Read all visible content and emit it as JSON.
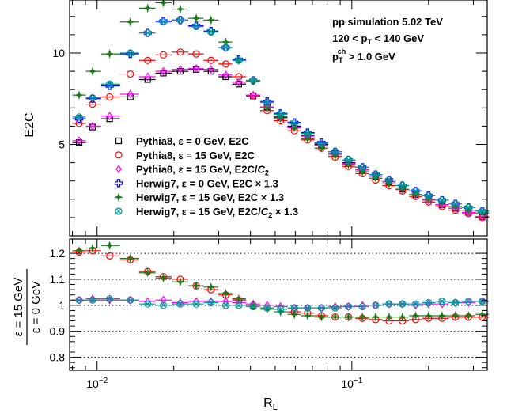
{
  "chart_data": [
    {
      "type": "scatter",
      "panel": "top",
      "ylabel": "E2C",
      "xscale": "log",
      "xlim": [
        0.0078,
        0.34
      ],
      "ylim": [
        0,
        12.9
      ],
      "x_ticks": [
        0.01,
        0.1
      ],
      "y_ticks": [
        5,
        10
      ],
      "annotations": [
        "pp simulation 5.02 TeV",
        "120 < p_T < 140 GeV",
        "p_T^ch > 1.0 GeV"
      ],
      "legend_position": "bottom-center",
      "x": [
        0.0085,
        0.0096,
        0.0112,
        0.0135,
        0.0158,
        0.0182,
        0.0212,
        0.0245,
        0.028,
        0.032,
        0.036,
        0.041,
        0.0465,
        0.0525,
        0.0595,
        0.067,
        0.076,
        0.086,
        0.097,
        0.11,
        0.124,
        0.14,
        0.158,
        0.178,
        0.2,
        0.226,
        0.255,
        0.287,
        0.325
      ],
      "series": [
        {
          "name": "Pythia8, ε = 0 GeV, E2C",
          "marker": "open-square",
          "color": "#000000",
          "values": [
            5.1,
            5.95,
            6.4,
            7.6,
            8.55,
            8.9,
            9.0,
            9.1,
            9.0,
            8.7,
            8.3,
            7.65,
            7.05,
            6.5,
            6.0,
            5.5,
            5.0,
            4.5,
            4.0,
            3.6,
            3.25,
            2.95,
            2.55,
            2.25,
            1.95,
            1.7,
            1.5,
            1.28,
            1.05
          ]
        },
        {
          "name": "Pythia8, ε = 15 GeV, E2C",
          "marker": "open-circle",
          "color": "#ff0000",
          "values": [
            6.15,
            7.2,
            7.6,
            8.85,
            9.6,
            9.9,
            10.05,
            9.95,
            9.6,
            9.4,
            8.7,
            7.65,
            6.85,
            6.3,
            5.75,
            5.25,
            4.8,
            4.3,
            3.8,
            3.4,
            3.05,
            2.75,
            2.45,
            2.15,
            1.85,
            1.6,
            1.4,
            1.22,
            1.0
          ]
        },
        {
          "name": "Pythia8, ε = 15 GeV, E2C/C_2",
          "marker": "open-diamond",
          "color": "#ff00ff",
          "values": [
            5.2,
            6.0,
            6.55,
            7.75,
            8.7,
            9.0,
            9.1,
            9.15,
            9.1,
            8.8,
            8.4,
            7.7,
            7.05,
            6.45,
            5.95,
            5.45,
            4.95,
            4.45,
            3.95,
            3.6,
            3.25,
            2.95,
            2.55,
            2.25,
            1.95,
            1.7,
            1.5,
            1.28,
            1.05
          ]
        },
        {
          "name": "Herwig7, ε = 0 GeV, E2C × 1.3",
          "marker": "open-cross",
          "color": "#0000ff",
          "values": [
            6.4,
            7.5,
            8.2,
            9.95,
            11.1,
            11.75,
            11.8,
            11.5,
            11.2,
            10.3,
            9.65,
            8.5,
            7.35,
            6.7,
            6.2,
            5.65,
            5.1,
            4.6,
            4.15,
            3.75,
            3.35,
            3.05,
            2.75,
            2.45,
            2.2,
            1.95,
            1.75,
            1.55,
            1.35
          ]
        },
        {
          "name": "Herwig7, ε = 15 GeV, E2C × 1.3",
          "marker": "filled-star",
          "color": "#1b7a1b",
          "values": [
            7.7,
            9.0,
            9.95,
            11.7,
            12.45,
            12.75,
            12.4,
            11.9,
            11.8,
            10.6,
            9.6,
            8.45,
            7.0,
            6.45,
            5.9,
            5.3,
            4.8,
            4.35,
            3.9,
            3.5,
            3.15,
            2.85,
            2.55,
            2.25,
            2.0,
            1.8,
            1.6,
            1.4,
            1.25
          ]
        },
        {
          "name": "Herwig7, ε = 15 GeV, E2C/C_2 × 1.3",
          "marker": "open-x-circle",
          "color": "#009999",
          "values": [
            6.5,
            7.55,
            8.3,
            10.0,
            11.1,
            11.7,
            11.8,
            11.45,
            11.15,
            10.3,
            9.6,
            8.5,
            7.3,
            6.65,
            6.15,
            5.6,
            5.05,
            4.6,
            4.15,
            3.75,
            3.35,
            3.05,
            2.75,
            2.45,
            2.2,
            1.95,
            1.75,
            1.55,
            1.35
          ]
        }
      ]
    },
    {
      "type": "scatter",
      "panel": "bottom",
      "xlabel": "R_L",
      "ylabel": "ε = 15 GeV / ε = 0 GeV",
      "xscale": "log",
      "xlim": [
        0.0078,
        0.34
      ],
      "ylim": [
        0.75,
        1.255
      ],
      "x_ticks": [
        0.01,
        0.1
      ],
      "y_ticks": [
        0.8,
        0.9,
        1,
        1.1,
        1.2
      ],
      "y_tick_labels": [
        "0.8",
        "0.9",
        "1",
        "1.1",
        "1.2"
      ],
      "grid_lines_y": [
        0.8,
        0.9,
        1,
        1.1,
        1.2
      ],
      "x": [
        0.0085,
        0.0096,
        0.0112,
        0.0135,
        0.0158,
        0.0182,
        0.0212,
        0.0245,
        0.028,
        0.032,
        0.036,
        0.041,
        0.0465,
        0.0525,
        0.0595,
        0.067,
        0.076,
        0.086,
        0.097,
        0.11,
        0.124,
        0.14,
        0.158,
        0.178,
        0.2,
        0.226,
        0.255,
        0.287,
        0.325
      ],
      "series": [
        {
          "name": "Pythia8, ε = 15 GeV, E2C",
          "marker": "open-circle",
          "color": "#ff0000",
          "values": [
            1.205,
            1.21,
            1.19,
            1.175,
            1.13,
            1.11,
            1.1,
            1.075,
            1.06,
            1.04,
            1.02,
            1.0,
            0.99,
            0.985,
            0.975,
            0.97,
            0.96,
            0.955,
            0.955,
            0.95,
            0.945,
            0.94,
            0.94,
            0.945,
            0.95,
            0.95,
            0.955,
            0.955,
            0.955
          ]
        },
        {
          "name": "Pythia8, ε = 15 GeV, E2C/C_2",
          "marker": "open-diamond",
          "color": "#ff00ff",
          "values": [
            1.02,
            1.025,
            1.02,
            1.02,
            1.015,
            1.02,
            1.01,
            1.015,
            1.015,
            1.015,
            1.01,
            1.005,
            1.0,
            0.995,
            0.99,
            0.99,
            0.99,
            0.995,
            0.995,
            1.0,
            1.0,
            1.005,
            1.005,
            1.0,
            1.005,
            1.005,
            1.01,
            1.01,
            1.015
          ]
        },
        {
          "name": "Herwig7, ε = 15 GeV, E2C × 1.3",
          "marker": "filled-star",
          "color": "#1b7a1b",
          "values": [
            1.21,
            1.22,
            1.23,
            1.18,
            1.125,
            1.105,
            1.09,
            1.075,
            1.07,
            1.045,
            1.025,
            1.0,
            0.985,
            0.975,
            0.965,
            0.96,
            0.955,
            0.955,
            0.955,
            0.955,
            0.955,
            0.955,
            0.955,
            0.96,
            0.96,
            0.96,
            0.96,
            0.96,
            0.965
          ]
        },
        {
          "name": "Herwig7, ε = 15 GeV, E2C/C_2 × 1.3",
          "marker": "open-x-circle",
          "color": "#009999",
          "values": [
            1.02,
            1.02,
            1.025,
            1.02,
            1.005,
            1.0,
            1.005,
            1.005,
            1.01,
            1.0,
            1.0,
            0.995,
            0.99,
            0.985,
            0.99,
            0.99,
            0.99,
            0.99,
            0.995,
            0.995,
            1.0,
            1.005,
            1.005,
            1.005,
            1.01,
            1.015,
            1.01,
            1.015,
            1.015
          ]
        }
      ]
    }
  ]
}
